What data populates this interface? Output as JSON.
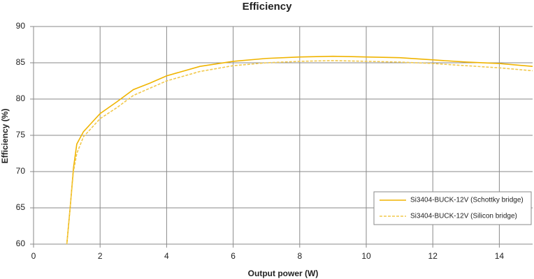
{
  "chart_data": {
    "type": "line",
    "title": "Efficiency",
    "x_label": "Output power (W)",
    "y_label": "Efficiency (%)",
    "x": [
      1.0,
      1.1,
      1.2,
      1.3,
      1.5,
      2,
      2.5,
      3,
      3.5,
      4,
      5,
      6,
      7,
      8,
      9,
      10,
      11,
      12,
      13,
      14,
      15
    ],
    "series": [
      {
        "name": "Si3404-BUCK-12V (Schottky bridge)",
        "color": "#f0b400",
        "dash": false,
        "values": [
          60,
          65,
          70.5,
          73.8,
          75.5,
          78,
          79.6,
          81.3,
          82.2,
          83.2,
          84.5,
          85.2,
          85.6,
          85.8,
          85.9,
          85.8,
          85.7,
          85.4,
          85.1,
          84.9,
          84.5
        ]
      },
      {
        "name": "Si3404-BUCK-12V (Silicon bridge)",
        "color": "#f2c94c",
        "dash": true,
        "values": [
          60,
          65,
          70,
          72.5,
          74.8,
          77.3,
          78.8,
          80.5,
          81.5,
          82.5,
          83.8,
          84.6,
          85.0,
          85.2,
          85.3,
          85.2,
          85.1,
          84.9,
          84.6,
          84.3,
          83.9
        ]
      }
    ],
    "xlim": [
      0,
      15
    ],
    "xticks": [
      0,
      2,
      4,
      6,
      8,
      10,
      12,
      14
    ],
    "ylim": [
      60,
      90
    ],
    "yticks": [
      60,
      65,
      70,
      75,
      80,
      85,
      90
    ],
    "grid": true,
    "legend": "lower-right"
  }
}
